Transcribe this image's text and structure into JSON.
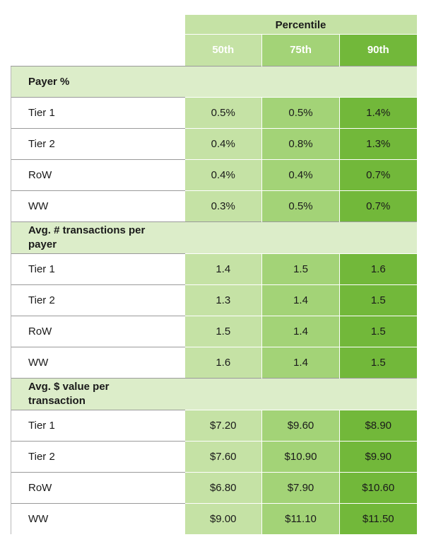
{
  "header": {
    "group_label": "Percentile",
    "columns": [
      "50th",
      "75th",
      "90th"
    ]
  },
  "sections": [
    {
      "title": "Payer %",
      "rows": [
        {
          "label": "Tier 1",
          "values": [
            "0.5%",
            "0.5%",
            "1.4%"
          ]
        },
        {
          "label": "Tier 2",
          "values": [
            "0.4%",
            "0.8%",
            "1.3%"
          ]
        },
        {
          "label": "RoW",
          "values": [
            "0.4%",
            "0.4%",
            "0.7%"
          ]
        },
        {
          "label": "WW",
          "values": [
            "0.3%",
            "0.5%",
            "0.7%"
          ]
        }
      ]
    },
    {
      "title": "Avg. # transactions per payer",
      "rows": [
        {
          "label": "Tier 1",
          "values": [
            "1.4",
            "1.5",
            "1.6"
          ]
        },
        {
          "label": "Tier 2",
          "values": [
            "1.3",
            "1.4",
            "1.5"
          ]
        },
        {
          "label": "RoW",
          "values": [
            "1.5",
            "1.4",
            "1.5"
          ]
        },
        {
          "label": "WW",
          "values": [
            "1.6",
            "1.4",
            "1.5"
          ]
        }
      ]
    },
    {
      "title": "Avg. $ value per transaction",
      "rows": [
        {
          "label": "Tier 1",
          "values": [
            "$7.20",
            "$9.60",
            "$8.90"
          ]
        },
        {
          "label": "Tier 2",
          "values": [
            "$7.60",
            "$10.90",
            "$9.90"
          ]
        },
        {
          "label": "RoW",
          "values": [
            "$6.80",
            "$7.90",
            "$10.60"
          ]
        },
        {
          "label": "WW",
          "values": [
            "$9.00",
            "$11.10",
            "$11.50"
          ]
        }
      ]
    }
  ],
  "colors": {
    "p50": "#c5e2a5",
    "p75": "#a3d377",
    "p90": "#72b83a",
    "section_bg": "#dcedc9"
  }
}
